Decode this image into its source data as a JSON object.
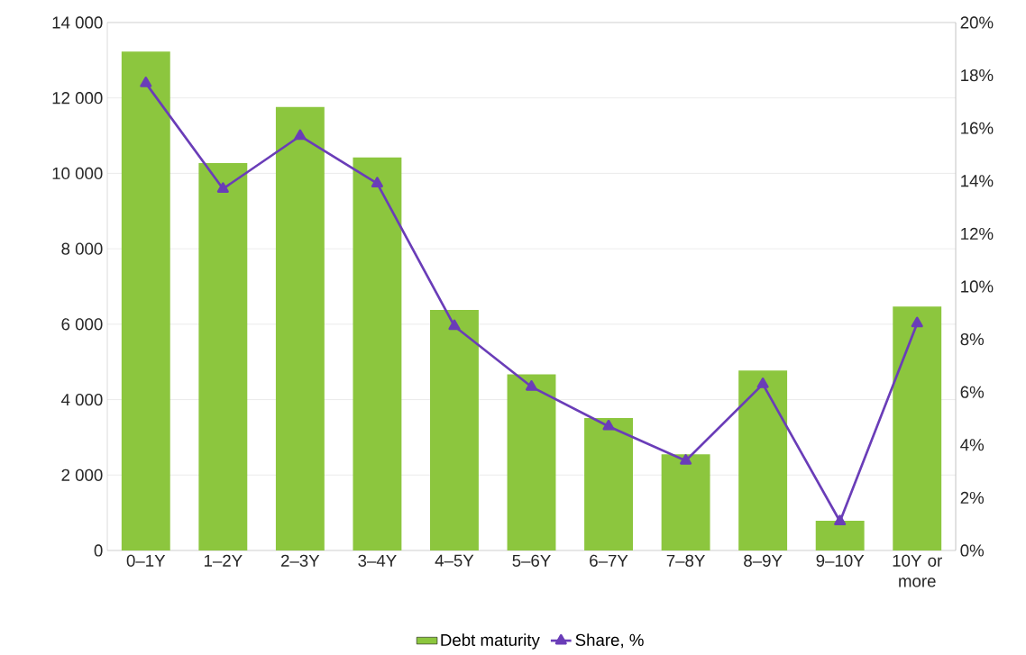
{
  "chart_data": {
    "type": "bar",
    "categories": [
      "0–1Y",
      "1–2Y",
      "2–3Y",
      "3–4Y",
      "4–5Y",
      "5–6Y",
      "6–7Y",
      "7–8Y",
      "8–9Y",
      "9–10Y",
      "10Y or more"
    ],
    "series": [
      {
        "name": "Debt maturity",
        "color": "#8cc63e",
        "values": [
          13230,
          10270,
          11760,
          10420,
          6380,
          4670,
          3510,
          2550,
          4770,
          790,
          6470
        ]
      },
      {
        "name": "Share, %",
        "type": "line",
        "axis": "y2",
        "color": "#6a3db8",
        "marker": "triangle",
        "line_style": "solid",
        "values": [
          17.7,
          13.7,
          15.7,
          13.9,
          8.5,
          6.2,
          4.7,
          3.4,
          6.3,
          1.1,
          8.6
        ]
      }
    ],
    "ylim": [
      0,
      14000
    ],
    "yticks": [
      0,
      {
        "value": 2000,
        "label": "2 000"
      },
      {
        "value": 4000,
        "label": "4 000"
      },
      {
        "value": 6000,
        "label": "6 000"
      },
      {
        "value": 8000,
        "label": "8 000"
      },
      {
        "value": 10000,
        "label": "10 000"
      },
      {
        "value": 12000,
        "label": "12 000"
      },
      {
        "value": 14000,
        "label": "14 000"
      }
    ],
    "y2lim": [
      0,
      20
    ],
    "y2ticks": [
      {
        "value": 0,
        "label": "0%"
      },
      {
        "value": 2,
        "label": "2%"
      },
      {
        "value": 4,
        "label": "4%"
      },
      {
        "value": 6,
        "label": "6%"
      },
      {
        "value": 8,
        "label": "8%"
      },
      {
        "value": 10,
        "label": "10%"
      },
      {
        "value": 12,
        "label": "12%"
      },
      {
        "value": 14,
        "label": "14%"
      },
      {
        "value": 16,
        "label": "16%"
      },
      {
        "value": 18,
        "label": "18%"
      },
      {
        "value": 20,
        "label": "20%"
      }
    ],
    "grid": "y",
    "legend": "bottom"
  }
}
